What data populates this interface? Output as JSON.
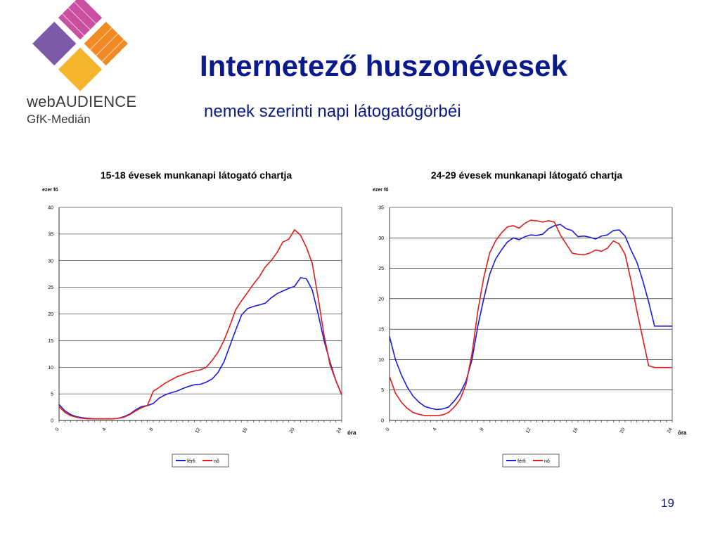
{
  "logo": {
    "line1": "webAUDIENCE",
    "line2": "GfK-Medián",
    "colors": [
      "#c94fa0",
      "#f08a24",
      "#f6b52e",
      "#7d5aa8"
    ]
  },
  "header": {
    "title": "Internetező huszonévesek",
    "subtitle": "nemek szerinti napi látogatógörbéi"
  },
  "page_number": "19",
  "chart_data": [
    {
      "type": "line",
      "title": "15-18 évesek munkanapi látogató chartja",
      "ylabel": "ezer fő",
      "xlabel": "óra",
      "xlim": [
        0,
        24
      ],
      "ylim": [
        0,
        40
      ],
      "yticks": [
        "0",
        "5",
        "10",
        "15",
        "20",
        "25",
        "30",
        "35",
        "40"
      ],
      "xticks": [
        "0",
        "4",
        "8",
        "12",
        "16",
        "20",
        "24"
      ],
      "grid": true,
      "legend": "bottom-center",
      "series": [
        {
          "name": "férfi",
          "color": "#1a1adb",
          "x": [
            0,
            0.5,
            1,
            1.5,
            2,
            2.5,
            3,
            3.5,
            4,
            4.5,
            5,
            5.5,
            6,
            6.5,
            7,
            7.5,
            8,
            8.5,
            9,
            9.5,
            10,
            10.5,
            11,
            11.5,
            12,
            12.5,
            13,
            13.5,
            14,
            14.5,
            15,
            15.5,
            16,
            16.5,
            17,
            17.5,
            18,
            18.5,
            19,
            19.5,
            20,
            20.5,
            21,
            21.5,
            22,
            22.5,
            23,
            23.5,
            24
          ],
          "values": [
            3,
            1.8,
            1.1,
            0.7,
            0.5,
            0.4,
            0.3,
            0.3,
            0.3,
            0.3,
            0.4,
            0.7,
            1.2,
            2,
            2.6,
            2.8,
            3.2,
            4.2,
            4.8,
            5.2,
            5.5,
            6,
            6.4,
            6.7,
            6.8,
            7.2,
            7.8,
            9,
            11,
            14,
            17,
            19.8,
            21,
            21.4,
            21.7,
            22,
            23,
            23.8,
            24.3,
            24.8,
            25.2,
            26.8,
            26.6,
            24.5,
            20,
            15,
            11,
            7.5,
            4.8
          ]
        },
        {
          "name": "nő",
          "color": "#e01c1c",
          "x": [
            0,
            0.5,
            1,
            1.5,
            2,
            2.5,
            3,
            3.5,
            4,
            4.5,
            5,
            5.5,
            6,
            6.5,
            7,
            7.5,
            8,
            8.5,
            9,
            9.5,
            10,
            10.5,
            11,
            11.5,
            12,
            12.5,
            13,
            13.5,
            14,
            14.5,
            15,
            15.5,
            16,
            16.5,
            17,
            17.5,
            18,
            18.5,
            19,
            19.5,
            20,
            20.5,
            21,
            21.5,
            22,
            22.5,
            23,
            23.5,
            24
          ],
          "values": [
            2.6,
            1.5,
            0.9,
            0.6,
            0.4,
            0.3,
            0.3,
            0.3,
            0.3,
            0.3,
            0.4,
            0.6,
            1.1,
            1.8,
            2.4,
            2.8,
            5.5,
            6.2,
            7,
            7.6,
            8.2,
            8.6,
            9,
            9.3,
            9.5,
            10,
            11.3,
            12.8,
            15,
            17.8,
            20.8,
            22.5,
            24,
            25.6,
            27,
            28.8,
            30,
            31.5,
            33.5,
            34,
            35.8,
            34.8,
            32.5,
            29.5,
            23,
            16,
            10.5,
            7.5,
            4.8
          ]
        }
      ]
    },
    {
      "type": "line",
      "title": "24-29 évesek munkanapi látogató chartja",
      "ylabel": "ezer fő",
      "xlabel": "óra",
      "xlim": [
        0,
        24
      ],
      "ylim": [
        0,
        35
      ],
      "yticks": [
        "0",
        "5",
        "10",
        "15",
        "20",
        "25",
        "30",
        "35"
      ],
      "xticks": [
        "0",
        "4",
        "8",
        "12",
        "16",
        "20",
        "24"
      ],
      "grid": true,
      "legend": "bottom-center",
      "series": [
        {
          "name": "férfi",
          "color": "#1a1adb",
          "x": [
            0,
            0.5,
            1,
            1.5,
            2,
            2.5,
            3,
            3.5,
            4,
            4.5,
            5,
            5.5,
            6,
            6.5,
            7,
            7.5,
            8,
            8.5,
            9,
            9.5,
            10,
            10.5,
            11,
            11.5,
            12,
            12.5,
            13,
            13.5,
            14,
            14.5,
            15,
            15.5,
            16,
            16.5,
            17,
            17.5,
            18,
            18.5,
            19,
            19.5,
            20,
            20.5,
            21,
            21.5,
            22,
            22.5,
            23,
            23.5,
            24
          ],
          "values": [
            13.8,
            10,
            7.5,
            5.5,
            4,
            3,
            2.3,
            2,
            1.8,
            1.9,
            2.2,
            3.2,
            4.5,
            6.5,
            10,
            15.5,
            20,
            24,
            26.5,
            28,
            29.3,
            30,
            29.7,
            30.2,
            30.5,
            30.4,
            30.6,
            31.5,
            32,
            32.2,
            31.5,
            31.2,
            30.2,
            30.3,
            30.1,
            29.8,
            30.3,
            30.5,
            31.2,
            31.3,
            30.3,
            28,
            26,
            23,
            19.5,
            15.5,
            15.5,
            15.5,
            15.5
          ]
        },
        {
          "name": "nő",
          "color": "#e01c1c",
          "x": [
            0,
            0.5,
            1,
            1.5,
            2,
            2.5,
            3,
            3.5,
            4,
            4.5,
            5,
            5.5,
            6,
            6.5,
            7,
            7.5,
            8,
            8.5,
            9,
            9.5,
            10,
            10.5,
            11,
            11.5,
            12,
            12.5,
            13,
            13.5,
            14,
            14.5,
            15,
            15.5,
            16,
            16.5,
            17,
            17.5,
            18,
            18.5,
            19,
            19.5,
            20,
            20.5,
            21,
            21.5,
            22,
            22.5,
            23,
            23.5,
            24
          ],
          "values": [
            7.2,
            4.5,
            3,
            2,
            1.3,
            1,
            0.8,
            0.8,
            0.8,
            0.9,
            1.3,
            2.2,
            3.5,
            6,
            11,
            18,
            23.5,
            27.5,
            29.5,
            30.8,
            31.8,
            32,
            31.6,
            32.4,
            32.9,
            32.8,
            32.6,
            32.8,
            32.6,
            30.5,
            29,
            27.5,
            27.3,
            27.2,
            27.5,
            28,
            27.8,
            28.3,
            29.5,
            29,
            27.3,
            23,
            18,
            13.5,
            9,
            8.7,
            8.7,
            8.7,
            8.7
          ]
        }
      ]
    }
  ]
}
